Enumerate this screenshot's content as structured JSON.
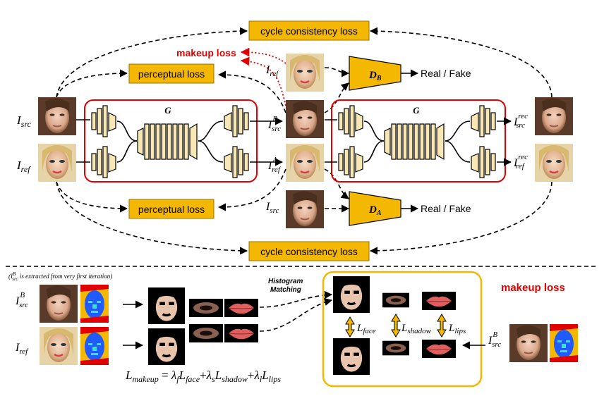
{
  "top": {
    "cycle_loss_top": "cycle consistency loss",
    "cycle_loss_bottom": "cycle consistency loss",
    "perceptual_loss_top": "perceptual loss",
    "perceptual_loss_bottom": "perceptual loss",
    "makeup_loss_red": "makeup loss",
    "generator_left": "G",
    "generator_right": "G",
    "disc_b": {
      "main": "D",
      "sub": "B"
    },
    "disc_a": {
      "main": "D",
      "sub": "A"
    },
    "real_fake_1": "Real / Fake",
    "real_fake_2": "Real / Fake"
  },
  "labels": {
    "i_src": {
      "main": "I",
      "sub": "src"
    },
    "i_ref": {
      "main": "I",
      "sub": "ref"
    },
    "i_ref_top": {
      "main": "I",
      "sub": "ref"
    },
    "i_src_bottom": {
      "main": "I",
      "sub": "src"
    },
    "i_src_b": {
      "main": "I",
      "sup": "B",
      "sub": "src"
    },
    "i_ref_a": {
      "main": "I",
      "sup": "A",
      "sub": "ref"
    },
    "i_src_rec": {
      "main": "I",
      "sup": "rec",
      "sub": "src"
    },
    "i_ref_rec": {
      "main": "I",
      "sup": "rec",
      "sub": "ref"
    }
  },
  "bottom": {
    "note": "(I",
    "note_sup": "B",
    "note_sub": "src",
    "note_rest": " is extracted from very first iteration)",
    "histogram": "Histogram",
    "matching": "Matching",
    "makeup_loss_title": "makeup loss",
    "row1": {
      "main": "I",
      "sup": "B",
      "sub": "src"
    },
    "row2": {
      "main": "I",
      "sub": "ref"
    },
    "right_src": {
      "main": "I",
      "sup": "B",
      "sub": "src"
    },
    "l_face": {
      "main": "L",
      "sub": "face"
    },
    "l_shadow": {
      "main": "L",
      "sub": "shadow"
    },
    "l_lips": {
      "main": "L",
      "sub": "lips"
    },
    "formula": {
      "l_main": "L",
      "l_sub": "makeup",
      "eq": " = ",
      "t1": "λ",
      "t1s": "f",
      "t1L": "L",
      "t1Ls": "face",
      "plus1": "+",
      "t2": "λ",
      "t2s": "s",
      "t2L": "L",
      "t2Ls": "shadow",
      "plus2": "+",
      "t3": "λ",
      "t3s": "l",
      "t3L": "L",
      "t3Ls": "lips"
    }
  },
  "colors": {
    "accent_orange": "#F5B800",
    "red": "#e00000",
    "block_fill": "#F7E7B5",
    "parse_blue": "#1f5bff",
    "parse_cyan": "#3fe0d0"
  }
}
